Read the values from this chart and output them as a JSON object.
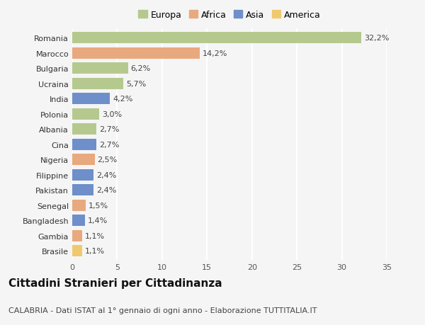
{
  "countries": [
    "Romania",
    "Marocco",
    "Bulgaria",
    "Ucraina",
    "India",
    "Polonia",
    "Albania",
    "Cina",
    "Nigeria",
    "Filippine",
    "Pakistan",
    "Senegal",
    "Bangladesh",
    "Gambia",
    "Brasile"
  ],
  "values": [
    32.2,
    14.2,
    6.2,
    5.7,
    4.2,
    3.0,
    2.7,
    2.7,
    2.5,
    2.4,
    2.4,
    1.5,
    1.4,
    1.1,
    1.1
  ],
  "labels": [
    "32,2%",
    "14,2%",
    "6,2%",
    "5,7%",
    "4,2%",
    "3,0%",
    "2,7%",
    "2,7%",
    "2,5%",
    "2,4%",
    "2,4%",
    "1,5%",
    "1,4%",
    "1,1%",
    "1,1%"
  ],
  "continents": [
    "Europa",
    "Africa",
    "Europa",
    "Europa",
    "Asia",
    "Europa",
    "Europa",
    "Asia",
    "Africa",
    "Asia",
    "Asia",
    "Africa",
    "Asia",
    "Africa",
    "America"
  ],
  "continent_colors": {
    "Europa": "#b5c98e",
    "Africa": "#e8a97e",
    "Asia": "#6e8fc9",
    "America": "#f0c96e"
  },
  "legend_order": [
    "Europa",
    "Africa",
    "Asia",
    "America"
  ],
  "title": "Cittadini Stranieri per Cittadinanza",
  "subtitle": "CALABRIA - Dati ISTAT al 1° gennaio di ogni anno - Elaborazione TUTTITALIA.IT",
  "xlim": [
    0,
    35
  ],
  "xticks": [
    0,
    5,
    10,
    15,
    20,
    25,
    30,
    35
  ],
  "background_color": "#f5f5f5",
  "grid_color": "#ffffff",
  "bar_height": 0.75,
  "title_fontsize": 11,
  "subtitle_fontsize": 8,
  "label_fontsize": 8,
  "tick_fontsize": 8,
  "legend_fontsize": 9
}
